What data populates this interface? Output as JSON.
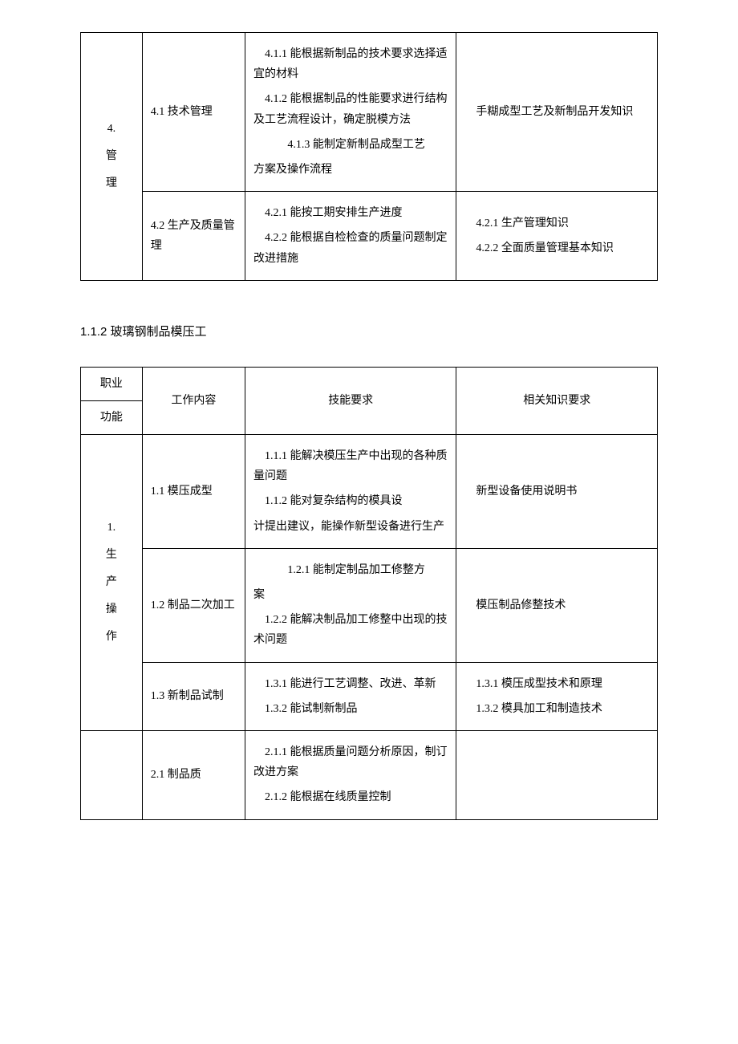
{
  "table1": {
    "r1": {
      "func": "4.\n管理",
      "work": "4.1 技术管理",
      "skill_a": "　4.1.1 能根据新制品的技术要求选择适宜的材料",
      "skill_b": "　4.1.2 能根据制品的性能要求进行结构及工艺流程设计，确定脱模方法",
      "skill_c": "　4.1.3 能制定新制品成型工艺",
      "skill_d": "方案及操作流程",
      "know": "　手糊成型工艺及新制品开发知识"
    },
    "r2": {
      "work": "4.2 生产及质量管理",
      "skill_a": "　4.2.1 能按工期安排生产进度",
      "skill_b": "　4.2.2 能根据自检检查的质量问题制定改进措施",
      "know_a": "　4.2.1 生产管理知识",
      "know_b": "　4.2.2 全面质量管理基本知识"
    }
  },
  "heading": "1.1.2 玻璃钢制品模压工",
  "table2": {
    "head": {
      "c1a": "职业",
      "c1b": "功能",
      "c2": "工作内容",
      "c3": "技能要求",
      "c4": "相关知识要求"
    },
    "r1": {
      "func": "1.\n生产操作",
      "work": "1.1 模压成型",
      "skill_a": "　1.1.1 能解决模压生产中出现的各种质量问题",
      "skill_b": "　1.1.2 能对复杂结构的模具设",
      "skill_c": "计提出建议，能操作新型设备进行生产",
      "know": "　新型设备使用说明书"
    },
    "r2": {
      "work": "1.2 制品二次加工",
      "skill_a": "　1.2.1 能制定制品加工修整方",
      "skill_b": "案",
      "skill_c": "　1.2.2 能解决制品加工修整中出现的技术问题",
      "know": "　模压制品修整技术"
    },
    "r3": {
      "work": "1.3 新制品试制",
      "skill_a": "　1.3.1 能进行工艺调整、改进、革新",
      "skill_b": "　1.3.2 能试制新制品",
      "know_a": "　1.3.1 模压成型技术和原理",
      "know_b": "　1.3.2 模具加工和制造技术"
    },
    "r4": {
      "func": "",
      "work": "2.1 制品质",
      "skill_a": "　2.1.1 能根据质量问题分析原因，制订改进方案",
      "skill_b": "　2.1.2 能根据在线质量控制",
      "know": ""
    }
  }
}
